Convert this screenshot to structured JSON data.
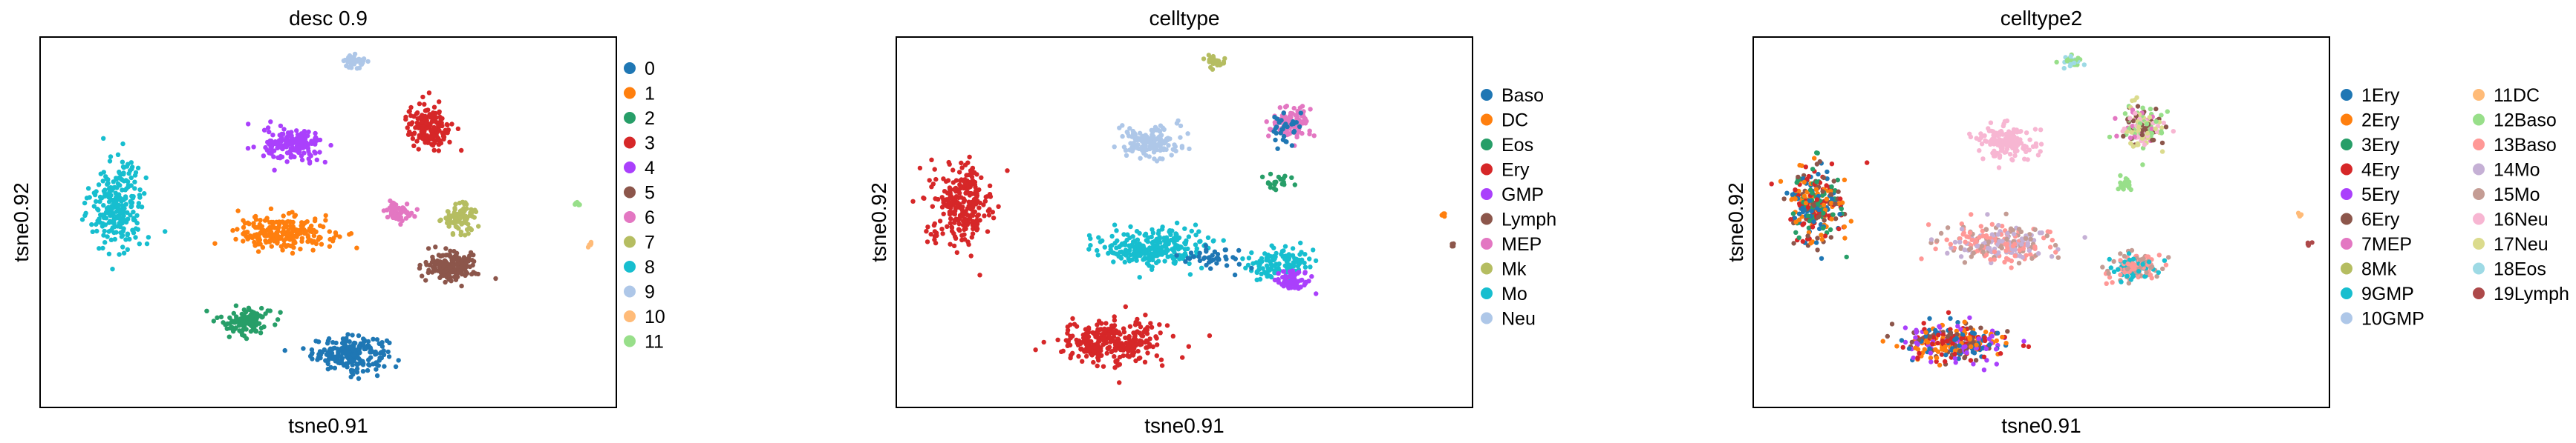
{
  "figure": {
    "xlabel": "tsne0.91",
    "ylabel": "tsne0.92"
  },
  "chart_data": [
    {
      "type": "scatter",
      "title": "desc 0.9",
      "xlabel": "tsne0.91",
      "ylabel": "tsne0.92",
      "legend_placement": "right",
      "legend_columns": 1,
      "grid": false,
      "series": [
        {
          "name": "0",
          "color": "#1f77b4"
        },
        {
          "name": "1",
          "color": "#ff7f0e"
        },
        {
          "name": "2",
          "color": "#279e68"
        },
        {
          "name": "3",
          "color": "#d62728"
        },
        {
          "name": "4",
          "color": "#aa40fc"
        },
        {
          "name": "5",
          "color": "#8c564b"
        },
        {
          "name": "6",
          "color": "#e377c2"
        },
        {
          "name": "7",
          "color": "#b5bd61"
        },
        {
          "name": "8",
          "color": "#17becf"
        },
        {
          "name": "9",
          "color": "#aec7e8"
        },
        {
          "name": "10",
          "color": "#ffbb78"
        },
        {
          "name": "11",
          "color": "#98df8a"
        }
      ],
      "clusters": [
        {
          "label": "0",
          "center": [
            0.68,
            0.14
          ],
          "spread": [
            0.085,
            0.045
          ],
          "n": 220
        },
        {
          "label": "1",
          "center": [
            0.53,
            0.47
          ],
          "spread": [
            0.11,
            0.045
          ],
          "n": 230
        },
        {
          "label": "2",
          "center": [
            0.44,
            0.23
          ],
          "spread": [
            0.06,
            0.04
          ],
          "n": 110
        },
        {
          "label": "3",
          "center": [
            0.86,
            0.76
          ],
          "spread": [
            0.05,
            0.06
          ],
          "n": 180
        },
        {
          "label": "4",
          "center": [
            0.55,
            0.71
          ],
          "spread": [
            0.065,
            0.045
          ],
          "n": 170
        },
        {
          "label": "5",
          "center": [
            0.91,
            0.38
          ],
          "spread": [
            0.06,
            0.04
          ],
          "n": 170
        },
        {
          "label": "6",
          "center": [
            0.79,
            0.53
          ],
          "spread": [
            0.035,
            0.03
          ],
          "n": 60
        },
        {
          "label": "7",
          "center": [
            0.93,
            0.51
          ],
          "spread": [
            0.04,
            0.04
          ],
          "n": 90
        },
        {
          "label": "8",
          "center": [
            0.15,
            0.55
          ],
          "spread": [
            0.06,
            0.11
          ],
          "n": 250
        },
        {
          "label": "9",
          "center": [
            0.69,
            0.94
          ],
          "spread": [
            0.025,
            0.02
          ],
          "n": 40
        },
        {
          "label": "10",
          "center": [
            1.23,
            0.44
          ],
          "spread": [
            0.005,
            0.007
          ],
          "n": 6
        },
        {
          "label": "11",
          "center": [
            1.2,
            0.55
          ],
          "spread": [
            0.008,
            0.005
          ],
          "n": 6
        }
      ]
    },
    {
      "type": "scatter",
      "title": "celltype",
      "xlabel": "tsne0.91",
      "ylabel": "tsne0.92",
      "legend_placement": "right",
      "legend_columns": 1,
      "grid": false,
      "series": [
        {
          "name": "Baso",
          "color": "#1f77b4"
        },
        {
          "name": "DC",
          "color": "#ff7f0e"
        },
        {
          "name": "Eos",
          "color": "#279e68"
        },
        {
          "name": "Ery",
          "color": "#d62728"
        },
        {
          "name": "GMP",
          "color": "#aa40fc"
        },
        {
          "name": "Lymph",
          "color": "#8c564b"
        },
        {
          "name": "MEP",
          "color": "#e377c2"
        },
        {
          "name": "Mk",
          "color": "#b5bd61"
        },
        {
          "name": "Mo",
          "color": "#17becf"
        },
        {
          "name": "Neu",
          "color": "#aec7e8"
        }
      ],
      "clusters": [
        {
          "label": "Ery",
          "center": [
            0.12,
            0.55
          ],
          "spread": [
            0.07,
            0.11
          ],
          "n": 260
        },
        {
          "label": "Ery",
          "center": [
            0.46,
            0.17
          ],
          "spread": [
            0.12,
            0.06
          ],
          "n": 300
        },
        {
          "label": "Mo",
          "center": [
            0.56,
            0.43
          ],
          "spread": [
            0.12,
            0.05
          ],
          "n": 260
        },
        {
          "label": "Mo",
          "center": [
            0.85,
            0.39
          ],
          "spread": [
            0.07,
            0.04
          ],
          "n": 120
        },
        {
          "label": "GMP",
          "center": [
            0.88,
            0.34
          ],
          "spread": [
            0.04,
            0.03
          ],
          "n": 70
        },
        {
          "label": "Baso",
          "center": [
            0.7,
            0.4
          ],
          "spread": [
            0.08,
            0.03
          ],
          "n": 40
        },
        {
          "label": "Neu",
          "center": [
            0.55,
            0.72
          ],
          "spread": [
            0.065,
            0.045
          ],
          "n": 150
        },
        {
          "label": "MEP",
          "center": [
            0.87,
            0.77
          ],
          "spread": [
            0.05,
            0.05
          ],
          "n": 90
        },
        {
          "label": "Baso",
          "center": [
            0.86,
            0.75
          ],
          "spread": [
            0.05,
            0.06
          ],
          "n": 30
        },
        {
          "label": "Mk",
          "center": [
            0.7,
            0.94
          ],
          "spread": [
            0.02,
            0.02
          ],
          "n": 30
        },
        {
          "label": "Eos",
          "center": [
            0.84,
            0.61
          ],
          "spread": [
            0.03,
            0.03
          ],
          "n": 20
        },
        {
          "label": "DC",
          "center": [
            1.22,
            0.52
          ],
          "spread": [
            0.006,
            0.005
          ],
          "n": 6
        },
        {
          "label": "Lymph",
          "center": [
            1.24,
            0.44
          ],
          "spread": [
            0.005,
            0.007
          ],
          "n": 6
        }
      ]
    },
    {
      "type": "scatter",
      "title": "celltype2",
      "xlabel": "tsne0.91",
      "ylabel": "tsne0.92",
      "legend_placement": "right",
      "legend_columns": 2,
      "grid": false,
      "series": [
        {
          "name": "1Ery",
          "color": "#1f77b4"
        },
        {
          "name": "2Ery",
          "color": "#ff7f0e"
        },
        {
          "name": "3Ery",
          "color": "#279e68"
        },
        {
          "name": "4Ery",
          "color": "#d62728"
        },
        {
          "name": "5Ery",
          "color": "#aa40fc"
        },
        {
          "name": "6Ery",
          "color": "#8c564b"
        },
        {
          "name": "7MEP",
          "color": "#e377c2"
        },
        {
          "name": "8Mk",
          "color": "#b5bd61"
        },
        {
          "name": "9GMP",
          "color": "#17becf"
        },
        {
          "name": "10GMP",
          "color": "#aec7e8"
        },
        {
          "name": "11DC",
          "color": "#ffbb78"
        },
        {
          "name": "12Baso",
          "color": "#98df8a"
        },
        {
          "name": "13Baso",
          "color": "#ff9896"
        },
        {
          "name": "14Mo",
          "color": "#c5b0d5"
        },
        {
          "name": "15Mo",
          "color": "#c49c94"
        },
        {
          "name": "16Neu",
          "color": "#f7b6d2"
        },
        {
          "name": "17Neu",
          "color": "#dbdb8d"
        },
        {
          "name": "18Eos",
          "color": "#9edae5"
        },
        {
          "name": "19Lymph",
          "color": "#ad494a"
        }
      ],
      "clusters": [
        {
          "label": "mixed",
          "mix": [
            "1Ery",
            "3Ery",
            "4Ery",
            "6Ery",
            "2Ery"
          ],
          "center": [
            0.12,
            0.55
          ],
          "spread": [
            0.065,
            0.11
          ],
          "n": 280
        },
        {
          "label": "mixed",
          "mix": [
            "5Ery",
            "4Ery",
            "6Ery",
            "2Ery",
            "1Ery"
          ],
          "center": [
            0.43,
            0.17
          ],
          "spread": [
            0.11,
            0.05
          ],
          "n": 300
        },
        {
          "label": "mixed",
          "mix": [
            "14Mo",
            "15Mo",
            "13Baso"
          ],
          "center": [
            0.53,
            0.44
          ],
          "spread": [
            0.12,
            0.05
          ],
          "n": 260
        },
        {
          "label": "mixed",
          "mix": [
            "13Baso",
            "15Mo",
            "9GMP"
          ],
          "center": [
            0.84,
            0.38
          ],
          "spread": [
            0.06,
            0.04
          ],
          "n": 150
        },
        {
          "label": "16Neu",
          "center": [
            0.55,
            0.72
          ],
          "spread": [
            0.065,
            0.045
          ],
          "n": 150
        },
        {
          "label": "mixed",
          "mix": [
            "6Ery",
            "7MEP",
            "16Neu",
            "12Baso",
            "17Neu"
          ],
          "center": [
            0.86,
            0.76
          ],
          "spread": [
            0.05,
            0.06
          ],
          "n": 170
        },
        {
          "label": "mixed",
          "mix": [
            "12Baso",
            "18Eos"
          ],
          "center": [
            0.7,
            0.94
          ],
          "spread": [
            0.02,
            0.02
          ],
          "n": 30
        },
        {
          "label": "12Baso",
          "center": [
            0.82,
            0.6
          ],
          "spread": [
            0.025,
            0.02
          ],
          "n": 20
        },
        {
          "label": "11DC",
          "center": [
            1.22,
            0.52
          ],
          "spread": [
            0.006,
            0.005
          ],
          "n": 6
        },
        {
          "label": "19Lymph",
          "center": [
            1.24,
            0.44
          ],
          "spread": [
            0.005,
            0.007
          ],
          "n": 6
        }
      ]
    }
  ]
}
